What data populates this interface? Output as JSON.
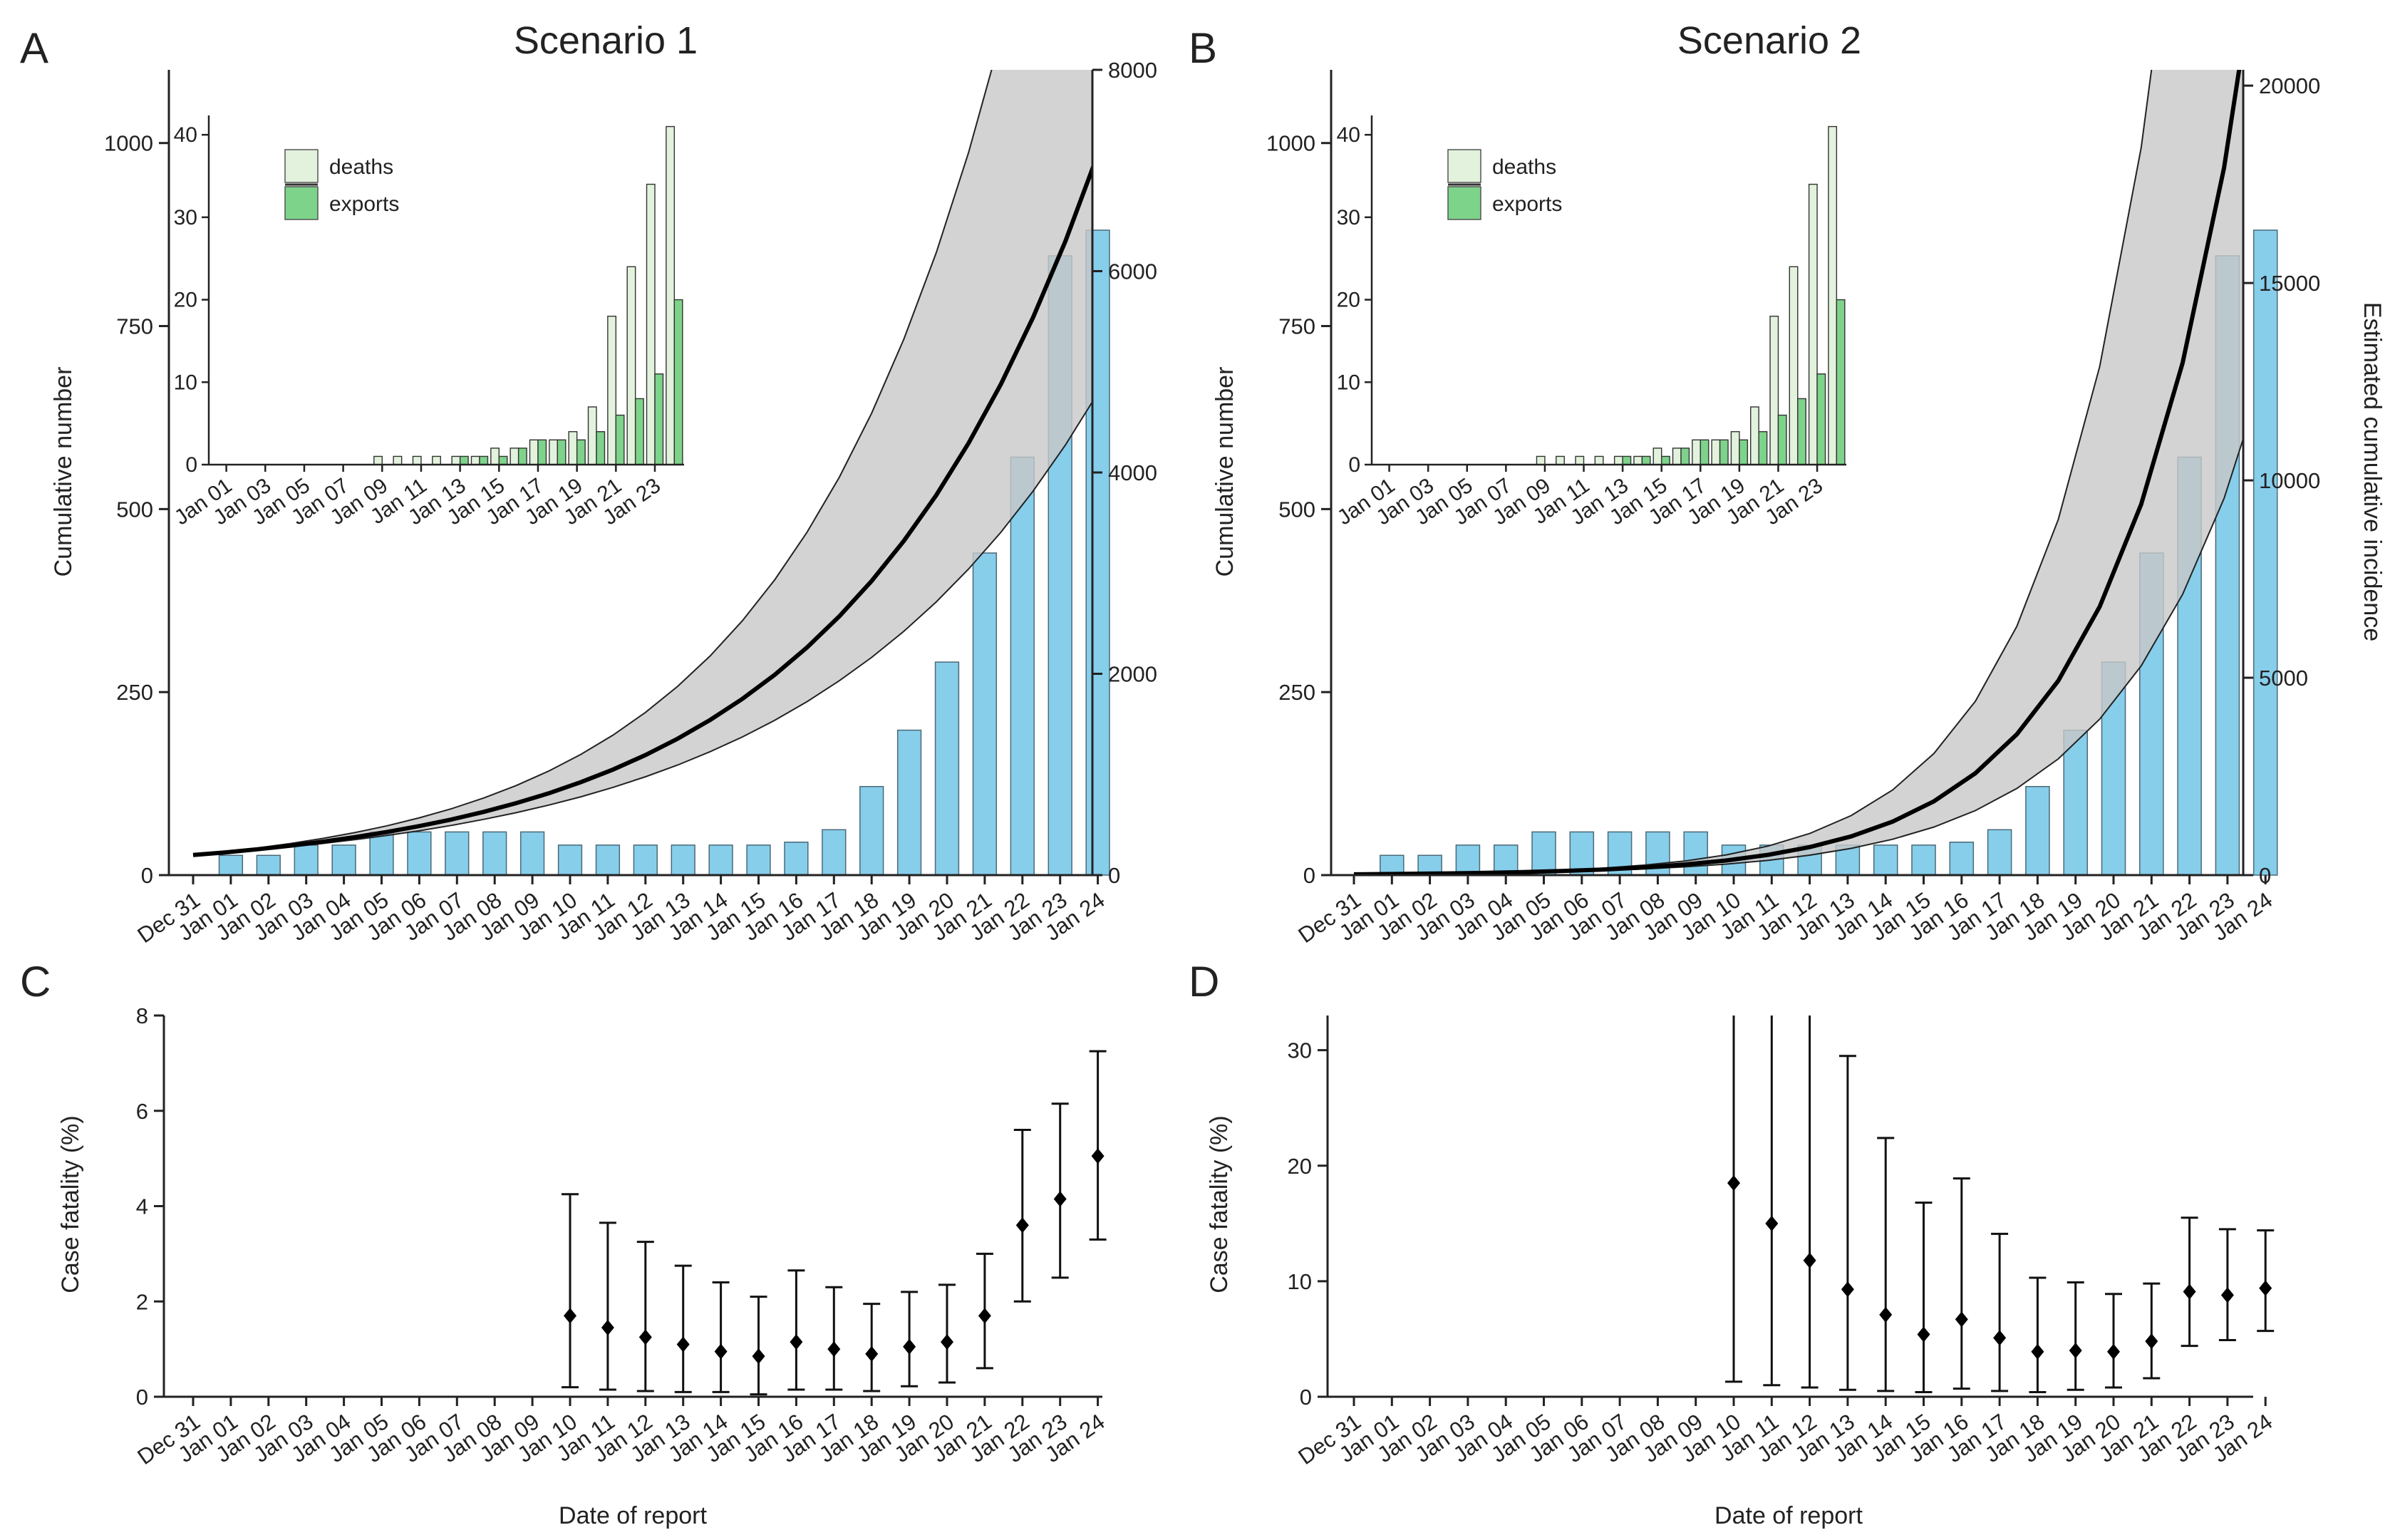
{
  "panels": {
    "A": {
      "letter": "A",
      "title": "Scenario 1"
    },
    "B": {
      "letter": "B",
      "title": "Scenario 2"
    },
    "C": {
      "letter": "C"
    },
    "D": {
      "letter": "D"
    }
  },
  "labels": {
    "cumulative_number": "Cumulative number",
    "estimated_cumulative_incidence": "Estimated cumulative incidence",
    "case_fatality": "Case fatality (%)",
    "date_of_report": "Date of report"
  },
  "colors": {
    "bar_fill": "#87CEEB",
    "bar_stroke": "#4a6a78",
    "band_fill": "#c8c8c8",
    "curve": "#000000",
    "deaths_fill": "#e2f2dc",
    "exports_fill": "#7dd38a"
  },
  "chart_data": [
    {
      "id": "A",
      "type": "bar",
      "title": "Scenario 1",
      "ylabel": "Cumulative number",
      "categories": [
        "Dec 31",
        "Jan 01",
        "Jan 02",
        "Jan 03",
        "Jan 04",
        "Jan 05",
        "Jan 06",
        "Jan 07",
        "Jan 08",
        "Jan 09",
        "Jan 10",
        "Jan 11",
        "Jan 12",
        "Jan 13",
        "Jan 14",
        "Jan 15",
        "Jan 16",
        "Jan 17",
        "Jan 18",
        "Jan 19",
        "Jan 20",
        "Jan 21",
        "Jan 22",
        "Jan 23",
        "Jan 24"
      ],
      "values": [
        0,
        27,
        27,
        41,
        41,
        59,
        59,
        59,
        59,
        59,
        41,
        41,
        41,
        41,
        41,
        41,
        45,
        62,
        121,
        198,
        291,
        440,
        571,
        846,
        881
      ],
      "ylim": [
        0,
        1100
      ],
      "yticks": [
        0,
        250,
        500,
        750,
        1000
      ],
      "right_axis": {
        "label": "",
        "ylim": [
          0,
          8000
        ],
        "ticks": [
          0,
          2000,
          4000,
          6000,
          8000
        ]
      },
      "curve": {
        "right_axis_units": true,
        "median": [
          200,
          226,
          257,
          292,
          331,
          377,
          428,
          487,
          553,
          629,
          715,
          812,
          923,
          1049,
          1193,
          1356,
          1541,
          1751,
          1990,
          2262,
          2571,
          2922,
          3321,
          3775,
          4291,
          4877,
          5543,
          6300,
          7160
        ],
        "lower": [
          200,
          223,
          250,
          280,
          314,
          352,
          394,
          441,
          494,
          554,
          620,
          695,
          778,
          872,
          977,
          1094,
          1226,
          1373,
          1538,
          1723,
          1931,
          2163,
          2423,
          2714,
          3041,
          3406,
          3816,
          4275,
          4789
        ],
        "upper": [
          200,
          232,
          270,
          313,
          364,
          422,
          490,
          569,
          660,
          767,
          890,
          1033,
          1199,
          1392,
          1616,
          1876,
          2177,
          2527,
          2934,
          3406,
          3953,
          4589,
          5327,
          6184,
          7178,
          8332,
          9672,
          11227,
          13033
        ]
      },
      "inset": {
        "type": "bar",
        "categories": [
          "Jan 01",
          "Jan 02",
          "Jan 03",
          "Jan 04",
          "Jan 05",
          "Jan 06",
          "Jan 07",
          "Jan 08",
          "Jan 09",
          "Jan 10",
          "Jan 11",
          "Jan 12",
          "Jan 13",
          "Jan 14",
          "Jan 15",
          "Jan 16",
          "Jan 17",
          "Jan 18",
          "Jan 19",
          "Jan 20",
          "Jan 21",
          "Jan 22",
          "Jan 23",
          "Jan 24"
        ],
        "tick_labels": [
          "Jan 01",
          "Jan 03",
          "Jan 05",
          "Jan 07",
          "Jan 09",
          "Jan 11",
          "Jan 13",
          "Jan 15",
          "Jan 17",
          "Jan 19",
          "Jan 21",
          "Jan 23"
        ],
        "series": [
          {
            "name": "deaths",
            "values": [
              0,
              0,
              0,
              0,
              0,
              0,
              0,
              0,
              1,
              1,
              1,
              1,
              1,
              1,
              2,
              2,
              3,
              3,
              4,
              7,
              18,
              24,
              34,
              41
            ]
          },
          {
            "name": "exports",
            "values": [
              0,
              0,
              0,
              0,
              0,
              0,
              0,
              0,
              0,
              0,
              0,
              0,
              1,
              1,
              1,
              2,
              3,
              3,
              3,
              4,
              6,
              8,
              11,
              20
            ]
          }
        ],
        "ylim": [
          0,
          42
        ],
        "yticks": [
          0,
          10,
          20,
          30,
          40
        ],
        "legend": [
          "deaths",
          "exports"
        ]
      }
    },
    {
      "id": "B",
      "type": "bar",
      "title": "Scenario 2",
      "ylabel": "Cumulative number",
      "categories": [
        "Dec 31",
        "Jan 01",
        "Jan 02",
        "Jan 03",
        "Jan 04",
        "Jan 05",
        "Jan 06",
        "Jan 07",
        "Jan 08",
        "Jan 09",
        "Jan 10",
        "Jan 11",
        "Jan 12",
        "Jan 13",
        "Jan 14",
        "Jan 15",
        "Jan 16",
        "Jan 17",
        "Jan 18",
        "Jan 19",
        "Jan 20",
        "Jan 21",
        "Jan 22",
        "Jan 23",
        "Jan 24"
      ],
      "values": [
        0,
        27,
        27,
        41,
        41,
        59,
        59,
        59,
        59,
        59,
        41,
        41,
        41,
        41,
        41,
        41,
        45,
        62,
        121,
        198,
        291,
        440,
        571,
        846,
        881
      ],
      "ylim": [
        0,
        1100
      ],
      "yticks": [
        0,
        250,
        500,
        750,
        1000
      ],
      "right_axis": {
        "label": "Estimated cumulative incidence",
        "ylim": [
          0,
          20400
        ],
        "ticks": [
          0,
          5000,
          10000,
          15000,
          20000
        ]
      },
      "curve": {
        "right_axis_units": true,
        "median": [
          20,
          28,
          39,
          54,
          74,
          102,
          141,
          195,
          270,
          372,
          514,
          710,
          980,
          1354,
          1870,
          2582,
          3566,
          4925,
          6802,
          9394,
          12973,
          17917,
          24745
        ],
        "lower": [
          20,
          27,
          36,
          48,
          64,
          86,
          116,
          155,
          209,
          280,
          376,
          505,
          677,
          908,
          1219,
          1636,
          2195,
          2945,
          3951,
          5301,
          7112,
          9543,
          12804
        ],
        "upper": [
          20,
          29,
          42,
          60,
          86,
          123,
          176,
          252,
          360,
          515,
          737,
          1054,
          1507,
          2155,
          3082,
          4407,
          6302,
          9012,
          12887,
          18429,
          26353,
          37685,
          53889
        ]
      },
      "inset": {
        "type": "bar",
        "categories": [
          "Jan 01",
          "Jan 02",
          "Jan 03",
          "Jan 04",
          "Jan 05",
          "Jan 06",
          "Jan 07",
          "Jan 08",
          "Jan 09",
          "Jan 10",
          "Jan 11",
          "Jan 12",
          "Jan 13",
          "Jan 14",
          "Jan 15",
          "Jan 16",
          "Jan 17",
          "Jan 18",
          "Jan 19",
          "Jan 20",
          "Jan 21",
          "Jan 22",
          "Jan 23",
          "Jan 24"
        ],
        "tick_labels": [
          "Jan 01",
          "Jan 03",
          "Jan 05",
          "Jan 07",
          "Jan 09",
          "Jan 11",
          "Jan 13",
          "Jan 15",
          "Jan 17",
          "Jan 19",
          "Jan 21",
          "Jan 23"
        ],
        "series": [
          {
            "name": "deaths",
            "values": [
              0,
              0,
              0,
              0,
              0,
              0,
              0,
              0,
              1,
              1,
              1,
              1,
              1,
              1,
              2,
              2,
              3,
              3,
              4,
              7,
              18,
              24,
              34,
              41
            ]
          },
          {
            "name": "exports",
            "values": [
              0,
              0,
              0,
              0,
              0,
              0,
              0,
              0,
              0,
              0,
              0,
              0,
              1,
              1,
              1,
              2,
              3,
              3,
              3,
              4,
              6,
              8,
              11,
              20
            ]
          }
        ],
        "ylim": [
          0,
          42
        ],
        "yticks": [
          0,
          10,
          20,
          30,
          40
        ],
        "legend": [
          "deaths",
          "exports"
        ]
      }
    },
    {
      "id": "C",
      "type": "scatter",
      "xlabel": "Date of report",
      "ylabel": "Case fatality (%)",
      "categories": [
        "Dec 31",
        "Jan 01",
        "Jan 02",
        "Jan 03",
        "Jan 04",
        "Jan 05",
        "Jan 06",
        "Jan 07",
        "Jan 08",
        "Jan 09",
        "Jan 10",
        "Jan 11",
        "Jan 12",
        "Jan 13",
        "Jan 14",
        "Jan 15",
        "Jan 16",
        "Jan 17",
        "Jan 18",
        "Jan 19",
        "Jan 20",
        "Jan 21",
        "Jan 22",
        "Jan 23",
        "Jan 24"
      ],
      "points": [
        {
          "x": "Jan 10",
          "y": 1.7,
          "lo": 0.2,
          "hi": 4.25
        },
        {
          "x": "Jan 11",
          "y": 1.45,
          "lo": 0.15,
          "hi": 3.65
        },
        {
          "x": "Jan 12",
          "y": 1.25,
          "lo": 0.12,
          "hi": 3.25
        },
        {
          "x": "Jan 13",
          "y": 1.1,
          "lo": 0.1,
          "hi": 2.75
        },
        {
          "x": "Jan 14",
          "y": 0.95,
          "lo": 0.1,
          "hi": 2.4
        },
        {
          "x": "Jan 15",
          "y": 0.85,
          "lo": 0.05,
          "hi": 2.1
        },
        {
          "x": "Jan 16",
          "y": 1.15,
          "lo": 0.15,
          "hi": 2.65
        },
        {
          "x": "Jan 17",
          "y": 1.0,
          "lo": 0.15,
          "hi": 2.3
        },
        {
          "x": "Jan 18",
          "y": 0.9,
          "lo": 0.12,
          "hi": 1.95
        },
        {
          "x": "Jan 19",
          "y": 1.05,
          "lo": 0.22,
          "hi": 2.2
        },
        {
          "x": "Jan 20",
          "y": 1.15,
          "lo": 0.3,
          "hi": 2.35
        },
        {
          "x": "Jan 21",
          "y": 1.7,
          "lo": 0.6,
          "hi": 3.0
        },
        {
          "x": "Jan 22",
          "y": 3.6,
          "lo": 2.0,
          "hi": 5.6
        },
        {
          "x": "Jan 23",
          "y": 4.15,
          "lo": 2.5,
          "hi": 6.15
        },
        {
          "x": "Jan 24",
          "y": 5.05,
          "lo": 3.3,
          "hi": 7.25
        }
      ],
      "ylim": [
        0,
        8
      ],
      "yticks": [
        0,
        2,
        4,
        6,
        8
      ]
    },
    {
      "id": "D",
      "type": "scatter",
      "xlabel": "Date of report",
      "ylabel": "Case fatality (%)",
      "categories": [
        "Dec 31",
        "Jan 01",
        "Jan 02",
        "Jan 03",
        "Jan 04",
        "Jan 05",
        "Jan 06",
        "Jan 07",
        "Jan 08",
        "Jan 09",
        "Jan 10",
        "Jan 11",
        "Jan 12",
        "Jan 13",
        "Jan 14",
        "Jan 15",
        "Jan 16",
        "Jan 17",
        "Jan 18",
        "Jan 19",
        "Jan 20",
        "Jan 21",
        "Jan 22",
        "Jan 23",
        "Jan 24"
      ],
      "points": [
        {
          "x": "Jan 10",
          "y": 18.5,
          "lo": 1.3,
          "hi": 35
        },
        {
          "x": "Jan 11",
          "y": 15.0,
          "lo": 1.0,
          "hi": 35
        },
        {
          "x": "Jan 12",
          "y": 11.8,
          "lo": 0.8,
          "hi": 35
        },
        {
          "x": "Jan 13",
          "y": 9.3,
          "lo": 0.6,
          "hi": 29.5
        },
        {
          "x": "Jan 14",
          "y": 7.1,
          "lo": 0.5,
          "hi": 22.4
        },
        {
          "x": "Jan 15",
          "y": 5.4,
          "lo": 0.4,
          "hi": 16.8
        },
        {
          "x": "Jan 16",
          "y": 6.7,
          "lo": 0.7,
          "hi": 18.9
        },
        {
          "x": "Jan 17",
          "y": 5.1,
          "lo": 0.5,
          "hi": 14.1
        },
        {
          "x": "Jan 18",
          "y": 3.9,
          "lo": 0.4,
          "hi": 10.3
        },
        {
          "x": "Jan 19",
          "y": 4.0,
          "lo": 0.6,
          "hi": 9.9
        },
        {
          "x": "Jan 20",
          "y": 3.9,
          "lo": 0.8,
          "hi": 8.9
        },
        {
          "x": "Jan 21",
          "y": 4.8,
          "lo": 1.6,
          "hi": 9.8
        },
        {
          "x": "Jan 22",
          "y": 9.1,
          "lo": 4.4,
          "hi": 15.5
        },
        {
          "x": "Jan 23",
          "y": 8.8,
          "lo": 4.9,
          "hi": 14.5
        },
        {
          "x": "Jan 24",
          "y": 9.4,
          "lo": 5.7,
          "hi": 14.4
        }
      ],
      "ylim": [
        0,
        33
      ],
      "yticks": [
        0,
        10,
        20,
        30
      ]
    }
  ]
}
